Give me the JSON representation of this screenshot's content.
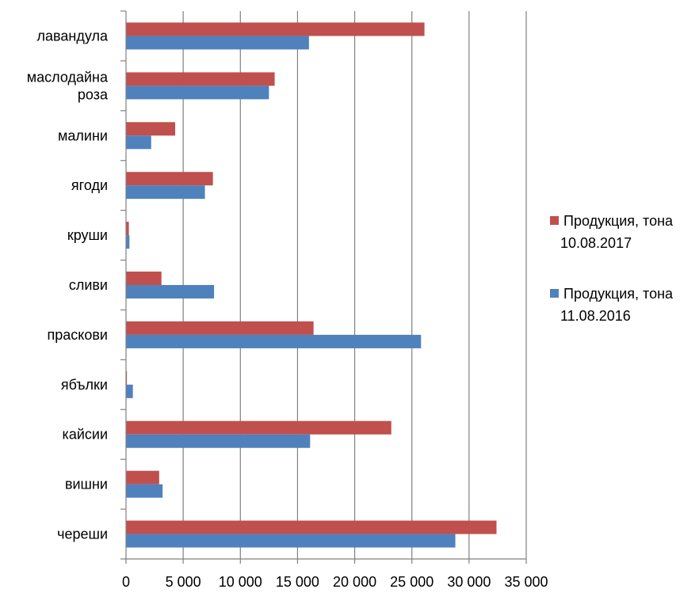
{
  "chart_data": {
    "type": "bar",
    "orientation": "horizontal",
    "categories": [
      "лавандула",
      "маслодайна роза",
      "малини",
      "ягоди",
      "круши",
      "сливи",
      "праскови",
      "ябълки",
      "кайсии",
      "вишни",
      "череши"
    ],
    "category_lines": [
      [
        "лавандула"
      ],
      [
        "маслодайна",
        "роза"
      ],
      [
        "малини"
      ],
      [
        "ягоди"
      ],
      [
        "круши"
      ],
      [
        "сливи"
      ],
      [
        "праскови"
      ],
      [
        "ябълки"
      ],
      [
        "кайсии"
      ],
      [
        "вишни"
      ],
      [
        "череши"
      ]
    ],
    "series": [
      {
        "name": "Продукция, тона 10.08.2017",
        "name_lines": [
          "Продукция, тона",
          "10.08.2017"
        ],
        "color": "#c0504d",
        "values": [
          26100,
          13000,
          4300,
          7600,
          250,
          3100,
          16400,
          80,
          23200,
          2900,
          32400
        ]
      },
      {
        "name": "Продукция, тона 11.08.2016",
        "name_lines": [
          "Продукция, тона",
          "11.08.2016"
        ],
        "color": "#4f81bd",
        "values": [
          16000,
          12500,
          2200,
          6900,
          300,
          7700,
          25800,
          600,
          16100,
          3200,
          28800
        ]
      }
    ],
    "xlim": [
      0,
      35000
    ],
    "xticks": [
      0,
      5000,
      10000,
      15000,
      20000,
      25000,
      30000,
      35000
    ],
    "xtick_labels": [
      "0",
      "5 000",
      "10 000",
      "15 000",
      "20 000",
      "25 000",
      "30 000",
      "35 000"
    ],
    "grid": true,
    "legend_position": "right",
    "title": "",
    "xlabel": "",
    "ylabel": ""
  }
}
